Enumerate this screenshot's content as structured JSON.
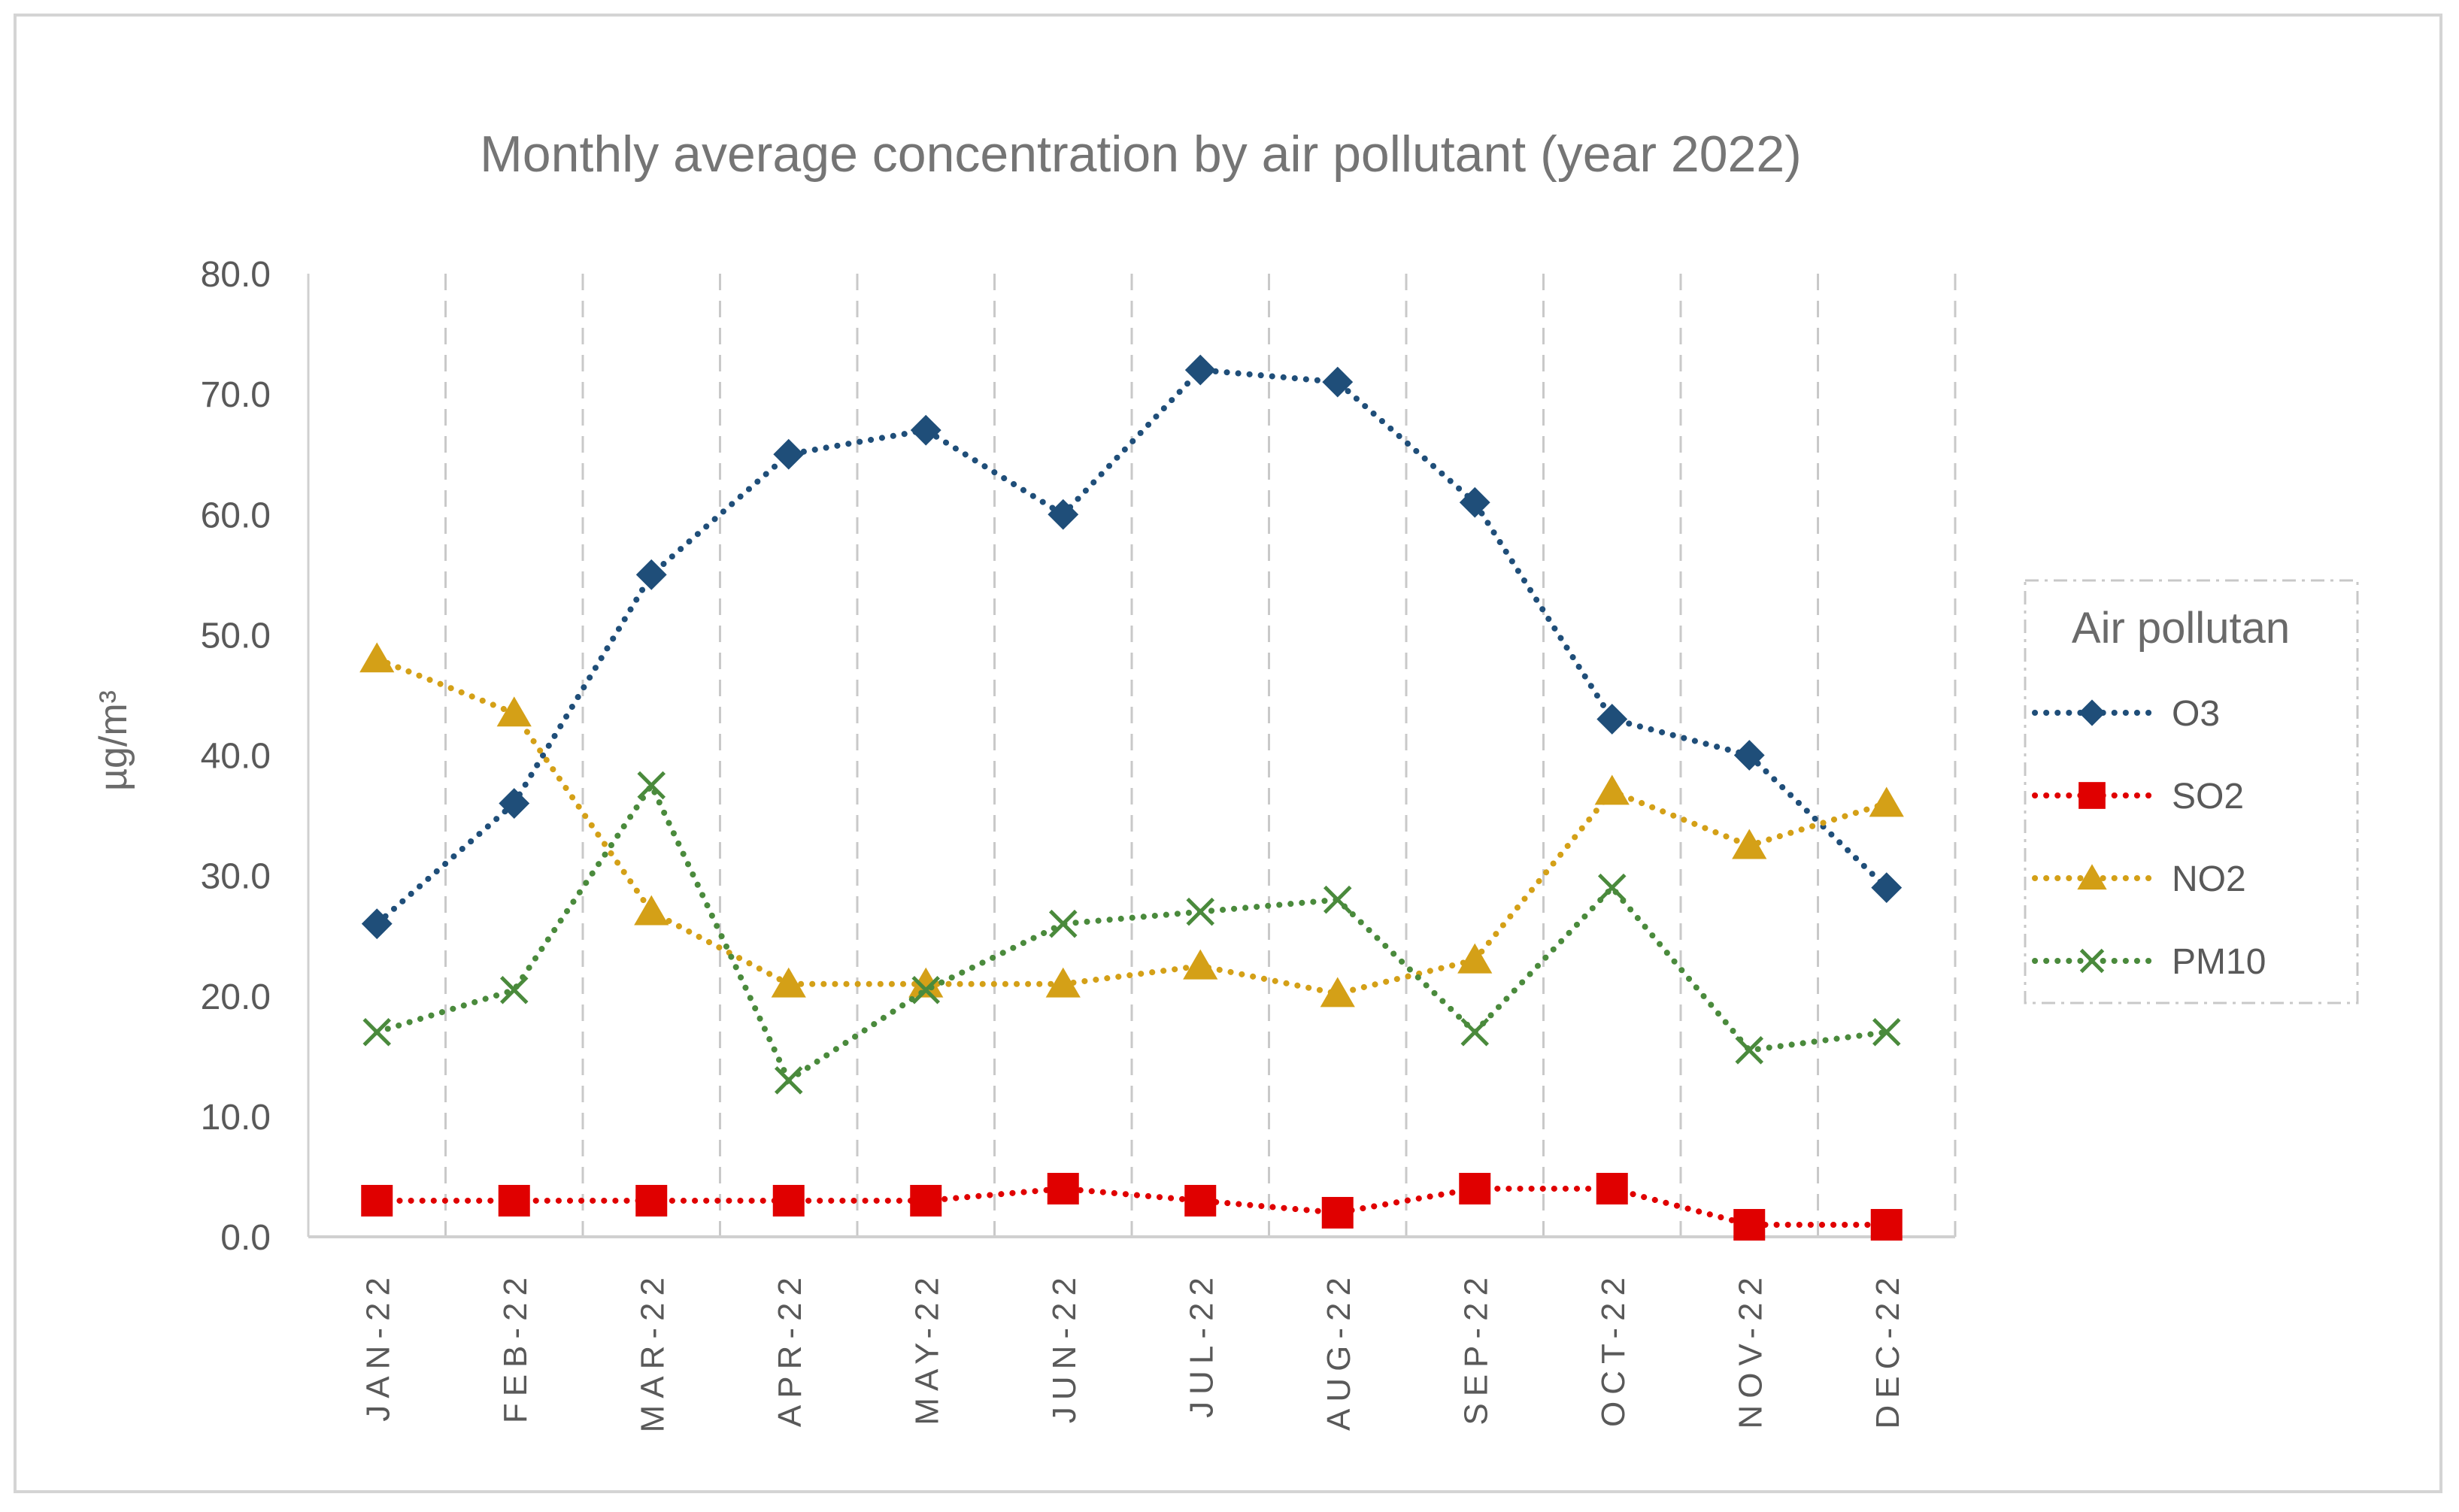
{
  "chart_data": {
    "type": "line",
    "title": "Monthly average concentration by air pollutant (year 2022)",
    "xlabel": "",
    "ylabel": "µg/m³",
    "ylim": [
      0,
      80
    ],
    "yticks": [
      "0.0",
      "10.0",
      "20.0",
      "30.0",
      "40.0",
      "50.0",
      "60.0",
      "70.0",
      "80.0"
    ],
    "categories": [
      "JAN-22",
      "FEB-22",
      "MAR-22",
      "APR-22",
      "MAY-22",
      "JUN-22",
      "JUL-22",
      "AUG-22",
      "SEP-22",
      "OCT-22",
      "NOV-22",
      "DEC-22"
    ],
    "grid": "vertical dashed",
    "legend": {
      "title": "Air pollutan",
      "placement": "right"
    },
    "series": [
      {
        "name": "O3",
        "color": "#1f4e79",
        "marker": "diamond",
        "values": [
          26,
          36,
          55,
          65,
          67,
          60,
          72,
          71,
          61,
          43,
          40,
          29
        ]
      },
      {
        "name": "SO2",
        "color": "#e00000",
        "marker": "square",
        "values": [
          3,
          3,
          3,
          3,
          3,
          4,
          3,
          2,
          4,
          4,
          1,
          1
        ]
      },
      {
        "name": "NO2",
        "color": "#d4a017",
        "marker": "triangle",
        "values": [
          48,
          43.5,
          27,
          21,
          21,
          21,
          22.5,
          20.2,
          23,
          37,
          32.5,
          36
        ]
      },
      {
        "name": "PM10",
        "color": "#4a8a3c",
        "marker": "x",
        "values": [
          17,
          20.5,
          37.5,
          13,
          20.5,
          26,
          27,
          28,
          17,
          29,
          15.5,
          17
        ]
      }
    ]
  }
}
